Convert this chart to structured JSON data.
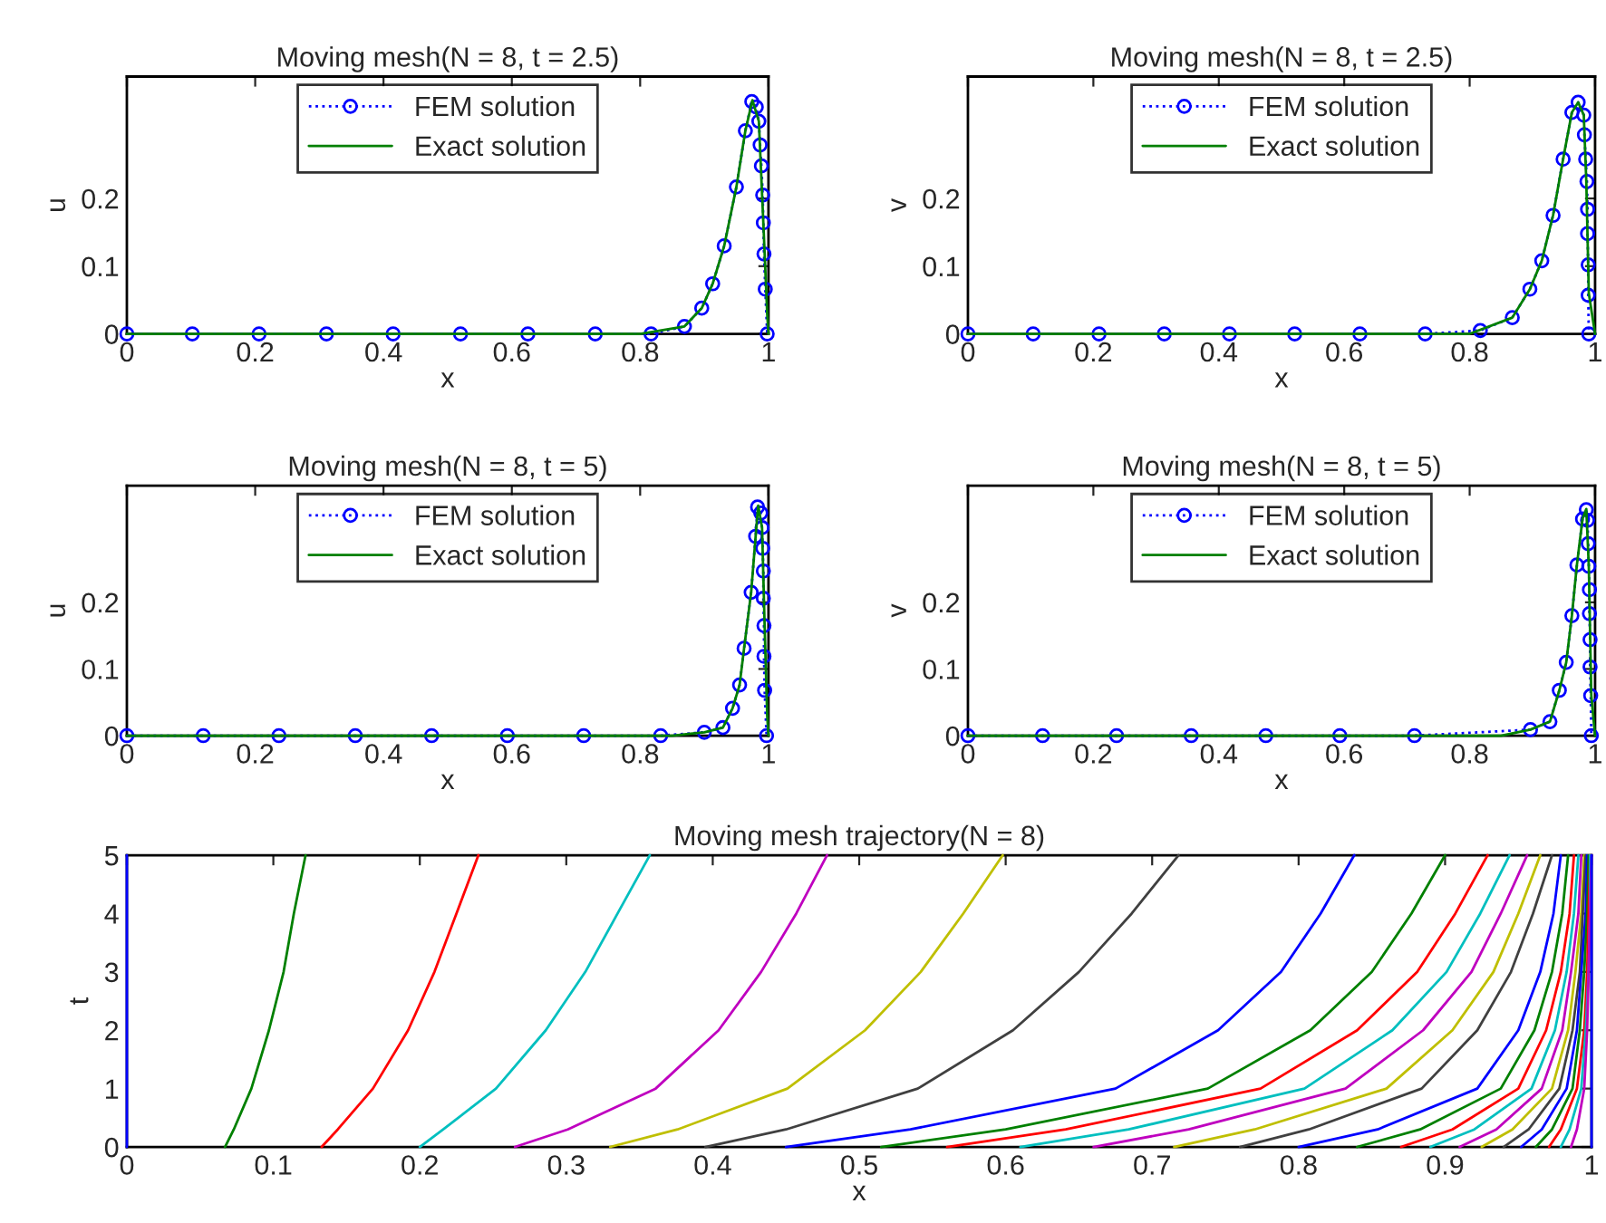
{
  "chart_data": [
    {
      "type": "line",
      "title": "Moving mesh(N = 8, t = 2.5)",
      "xlabel": "x",
      "ylabel": "u",
      "xlim": [
        0,
        1
      ],
      "ylim": [
        0,
        0.38
      ],
      "xticks": [
        0,
        0.2,
        0.4,
        0.6,
        0.8,
        1
      ],
      "yticks": [
        0,
        0.1,
        0.2
      ],
      "legend": "top",
      "grid": false,
      "series": [
        {
          "name": "FEM solution",
          "color": "#0000ff",
          "marker": "circle",
          "line_style": "dotted",
          "x": [
            0,
            0.102,
            0.206,
            0.311,
            0.415,
            0.52,
            0.625,
            0.73,
            0.817,
            0.869,
            0.896,
            0.913,
            0.931,
            0.95,
            0.964,
            0.974,
            0.981,
            0.985,
            0.987,
            0.989,
            0.991,
            0.992,
            0.993,
            0.995,
            0.998
          ],
          "values": [
            0,
            0,
            0,
            0,
            0,
            0,
            0,
            0,
            0,
            0.011,
            0.038,
            0.074,
            0.13,
            0.217,
            0.3,
            0.343,
            0.335,
            0.314,
            0.279,
            0.248,
            0.205,
            0.164,
            0.118,
            0.066,
            0
          ]
        },
        {
          "name": "Exact solution",
          "color": "#008000",
          "line_style": "solid",
          "x": [
            0,
            0.8,
            0.869,
            0.896,
            0.913,
            0.931,
            0.95,
            0.964,
            0.975,
            0.985,
            0.992,
            0.998,
            1
          ],
          "values": [
            0,
            0,
            0.011,
            0.038,
            0.074,
            0.13,
            0.217,
            0.3,
            0.345,
            0.314,
            0.164,
            0.03,
            0
          ]
        }
      ]
    },
    {
      "type": "line",
      "title": "Moving mesh(N = 8, t = 2.5)",
      "xlabel": "x",
      "ylabel": "v",
      "xlim": [
        0,
        1
      ],
      "ylim": [
        0,
        0.38
      ],
      "xticks": [
        0,
        0.2,
        0.4,
        0.6,
        0.8,
        1
      ],
      "yticks": [
        0,
        0.1,
        0.2
      ],
      "legend": "top",
      "grid": false,
      "series": [
        {
          "name": "FEM solution",
          "color": "#0000ff",
          "marker": "circle",
          "line_style": "dotted",
          "x": [
            0,
            0.104,
            0.209,
            0.313,
            0.417,
            0.521,
            0.625,
            0.729,
            0.817,
            0.868,
            0.896,
            0.915,
            0.933,
            0.949,
            0.963,
            0.973,
            0.982,
            0.983,
            0.985,
            0.987,
            0.988,
            0.988,
            0.989,
            0.989,
            0.99
          ],
          "values": [
            0,
            0,
            0,
            0,
            0,
            0,
            0,
            0,
            0.005,
            0.024,
            0.066,
            0.108,
            0.175,
            0.258,
            0.327,
            0.342,
            0.323,
            0.294,
            0.258,
            0.225,
            0.184,
            0.148,
            0.102,
            0.057,
            0
          ]
        },
        {
          "name": "Exact solution",
          "color": "#008000",
          "line_style": "solid",
          "x": [
            0,
            0.8,
            0.868,
            0.896,
            0.915,
            0.933,
            0.949,
            0.963,
            0.973,
            0.982,
            0.986,
            0.99,
            1
          ],
          "values": [
            0,
            0,
            0.024,
            0.066,
            0.108,
            0.175,
            0.258,
            0.327,
            0.342,
            0.323,
            0.225,
            0.06,
            0
          ]
        }
      ]
    },
    {
      "type": "line",
      "title": "Moving mesh(N = 8, t = 5)",
      "xlabel": "x",
      "ylabel": "u",
      "xlim": [
        0,
        1
      ],
      "ylim": [
        0,
        0.375
      ],
      "xticks": [
        0,
        0.2,
        0.4,
        0.6,
        0.8,
        1
      ],
      "yticks": [
        0,
        0.1,
        0.2
      ],
      "legend": "top",
      "grid": false,
      "series": [
        {
          "name": "FEM solution",
          "color": "#0000ff",
          "marker": "circle",
          "line_style": "dotted",
          "x": [
            0,
            0.119,
            0.237,
            0.356,
            0.475,
            0.593,
            0.712,
            0.832,
            0.9,
            0.929,
            0.944,
            0.955,
            0.962,
            0.973,
            0.98,
            0.983,
            0.988,
            0.99,
            0.991,
            0.992,
            0.992,
            0.993,
            0.993,
            0.994,
            0.997
          ],
          "values": [
            0,
            0,
            0,
            0,
            0,
            0,
            0,
            0,
            0.005,
            0.012,
            0.041,
            0.076,
            0.131,
            0.215,
            0.299,
            0.343,
            0.334,
            0.312,
            0.281,
            0.247,
            0.206,
            0.165,
            0.119,
            0.068,
            0
          ]
        },
        {
          "name": "Exact solution",
          "color": "#008000",
          "line_style": "solid",
          "x": [
            0,
            0.85,
            0.9,
            0.929,
            0.944,
            0.955,
            0.962,
            0.973,
            0.98,
            0.984,
            0.99,
            0.994,
            0.998,
            1
          ],
          "values": [
            0,
            0,
            0.005,
            0.012,
            0.041,
            0.076,
            0.131,
            0.215,
            0.299,
            0.345,
            0.312,
            0.165,
            0.03,
            0
          ]
        }
      ]
    },
    {
      "type": "line",
      "title": "Moving mesh(N = 8, t = 5)",
      "xlabel": "x",
      "ylabel": "v",
      "xlim": [
        0,
        1
      ],
      "ylim": [
        0,
        0.375
      ],
      "xticks": [
        0,
        0.2,
        0.4,
        0.6,
        0.8,
        1
      ],
      "yticks": [
        0,
        0.1,
        0.2
      ],
      "legend": "top",
      "grid": false,
      "series": [
        {
          "name": "FEM solution",
          "color": "#0000ff",
          "marker": "circle",
          "line_style": "dotted",
          "x": [
            0,
            0.119,
            0.237,
            0.356,
            0.475,
            0.593,
            0.712,
            0.897,
            0.928,
            0.943,
            0.954,
            0.963,
            0.971,
            0.98,
            0.986,
            0.988,
            0.989,
            0.99,
            0.991,
            0.991,
            0.992,
            0.992,
            0.993,
            0.994
          ],
          "values": [
            0,
            0,
            0,
            0,
            0,
            0,
            0,
            0.009,
            0.021,
            0.068,
            0.11,
            0.18,
            0.256,
            0.325,
            0.339,
            0.323,
            0.288,
            0.254,
            0.219,
            0.183,
            0.144,
            0.103,
            0.06,
            0
          ]
        },
        {
          "name": "Exact solution",
          "color": "#008000",
          "line_style": "solid",
          "x": [
            0,
            0.85,
            0.897,
            0.928,
            0.943,
            0.954,
            0.963,
            0.971,
            0.98,
            0.986,
            0.99,
            0.994,
            1
          ],
          "values": [
            0,
            0,
            0.009,
            0.021,
            0.068,
            0.11,
            0.18,
            0.256,
            0.325,
            0.34,
            0.254,
            0.06,
            0
          ]
        }
      ]
    },
    {
      "type": "line",
      "title": "Moving mesh trajectory(N = 8)",
      "xlabel": "x",
      "ylabel": "t",
      "xlim": [
        0,
        1
      ],
      "ylim": [
        0,
        5
      ],
      "xticks": [
        0,
        0.1,
        0.2,
        0.3,
        0.4,
        0.5,
        0.6,
        0.7,
        0.8,
        0.9,
        1
      ],
      "yticks": [
        0,
        1,
        2,
        3,
        4,
        5
      ],
      "grid": false,
      "series": [
        {
          "color": "#0000ff",
          "x": [
            0,
            0,
            0,
            0,
            0,
            0,
            0
          ],
          "values": [
            0,
            0.3,
            1,
            2,
            3,
            4,
            5
          ]
        },
        {
          "color": "#008000",
          "x": [
            0.067,
            0.073,
            0.085,
            0.097,
            0.107,
            0.114,
            0.122
          ],
          "values": [
            0,
            0.3,
            1,
            2,
            3,
            4,
            5
          ]
        },
        {
          "color": "#ff0000",
          "x": [
            0.133,
            0.144,
            0.168,
            0.192,
            0.21,
            0.225,
            0.24
          ],
          "values": [
            0,
            0.3,
            1,
            2,
            3,
            4,
            5
          ]
        },
        {
          "color": "#00bfbf",
          "x": [
            0.2,
            0.216,
            0.252,
            0.286,
            0.313,
            0.335,
            0.357
          ],
          "values": [
            0,
            0.3,
            1,
            2,
            3,
            4,
            5
          ]
        },
        {
          "color": "#bf00bf",
          "x": [
            0.265,
            0.301,
            0.361,
            0.404,
            0.433,
            0.457,
            0.478
          ],
          "values": [
            0,
            0.3,
            1,
            2,
            3,
            4,
            5
          ]
        },
        {
          "color": "#bfbf00",
          "x": [
            0.33,
            0.376,
            0.451,
            0.504,
            0.542,
            0.571,
            0.598
          ],
          "values": [
            0,
            0.3,
            1,
            2,
            3,
            4,
            5
          ]
        },
        {
          "color": "#404040",
          "x": [
            0.395,
            0.45,
            0.54,
            0.605,
            0.65,
            0.686,
            0.718
          ],
          "values": [
            0,
            0.3,
            1,
            2,
            3,
            4,
            5
          ]
        },
        {
          "color": "#0000ff",
          "x": [
            0.45,
            0.535,
            0.675,
            0.745,
            0.788,
            0.815,
            0.838
          ],
          "values": [
            0,
            0.3,
            1,
            2,
            3,
            4,
            5
          ]
        },
        {
          "color": "#008000",
          "x": [
            0.515,
            0.6,
            0.738,
            0.808,
            0.85,
            0.877,
            0.9
          ],
          "values": [
            0,
            0.3,
            1,
            2,
            3,
            4,
            5
          ]
        },
        {
          "color": "#ff0000",
          "x": [
            0.56,
            0.641,
            0.774,
            0.84,
            0.881,
            0.907,
            0.929
          ],
          "values": [
            0,
            0.3,
            1,
            2,
            3,
            4,
            5
          ]
        },
        {
          "color": "#00bfbf",
          "x": [
            0.61,
            0.684,
            0.804,
            0.864,
            0.901,
            0.924,
            0.944
          ],
          "values": [
            0,
            0.3,
            1,
            2,
            3,
            4,
            5
          ]
        },
        {
          "color": "#bf00bf",
          "x": [
            0.66,
            0.725,
            0.832,
            0.885,
            0.918,
            0.938,
            0.956
          ],
          "values": [
            0,
            0.3,
            1,
            2,
            3,
            4,
            5
          ]
        },
        {
          "color": "#bfbf00",
          "x": [
            0.715,
            0.77,
            0.86,
            0.905,
            0.933,
            0.95,
            0.965
          ],
          "values": [
            0,
            0.3,
            1,
            2,
            3,
            4,
            5
          ]
        },
        {
          "color": "#404040",
          "x": [
            0.76,
            0.807,
            0.884,
            0.922,
            0.945,
            0.96,
            0.973
          ],
          "values": [
            0,
            0.3,
            1,
            2,
            3,
            4,
            5
          ]
        },
        {
          "color": "#0000ff",
          "x": [
            0.8,
            0.854,
            0.922,
            0.95,
            0.965,
            0.974,
            0.979
          ],
          "values": [
            0,
            0.3,
            1,
            2,
            3,
            4,
            5
          ]
        },
        {
          "color": "#008000",
          "x": [
            0.84,
            0.883,
            0.938,
            0.961,
            0.973,
            0.98,
            0.984
          ],
          "values": [
            0,
            0.3,
            1,
            2,
            3,
            4,
            5
          ]
        },
        {
          "color": "#ff0000",
          "x": [
            0.87,
            0.905,
            0.95,
            0.969,
            0.979,
            0.985,
            0.988
          ],
          "values": [
            0,
            0.3,
            1,
            2,
            3,
            4,
            5
          ]
        },
        {
          "color": "#00bfbf",
          "x": [
            0.89,
            0.92,
            0.959,
            0.975,
            0.983,
            0.988,
            0.991
          ],
          "values": [
            0,
            0.3,
            1,
            2,
            3,
            4,
            5
          ]
        },
        {
          "color": "#bf00bf",
          "x": [
            0.91,
            0.935,
            0.966,
            0.98,
            0.986,
            0.991,
            0.993
          ],
          "values": [
            0,
            0.3,
            1,
            2,
            3,
            4,
            5
          ]
        },
        {
          "color": "#bfbf00",
          "x": [
            0.925,
            0.946,
            0.973,
            0.984,
            0.989,
            0.993,
            0.995
          ],
          "values": [
            0,
            0.3,
            1,
            2,
            3,
            4,
            5
          ]
        },
        {
          "color": "#404040",
          "x": [
            0.94,
            0.957,
            0.978,
            0.987,
            0.992,
            0.994,
            0.996
          ],
          "values": [
            0,
            0.3,
            1,
            2,
            3,
            4,
            5
          ]
        },
        {
          "color": "#0000ff",
          "x": [
            0.952,
            0.966,
            0.983,
            0.99,
            0.993,
            0.996,
            0.997
          ],
          "values": [
            0,
            0.3,
            1,
            2,
            3,
            4,
            5
          ]
        },
        {
          "color": "#008000",
          "x": [
            0.962,
            0.973,
            0.987,
            0.992,
            0.995,
            0.997,
            0.998
          ],
          "values": [
            0,
            0.3,
            1,
            2,
            3,
            4,
            5
          ]
        },
        {
          "color": "#ff0000",
          "x": [
            0.971,
            0.979,
            0.99,
            0.995,
            0.997,
            0.998,
            0.999
          ],
          "values": [
            0,
            0.3,
            1,
            2,
            3,
            4,
            5
          ]
        },
        {
          "color": "#00bfbf",
          "x": [
            0.979,
            0.985,
            0.993,
            0.996,
            0.998,
            0.999,
            0.999
          ],
          "values": [
            0,
            0.3,
            1,
            2,
            3,
            4,
            5
          ]
        },
        {
          "color": "#bf00bf",
          "x": [
            0.986,
            0.99,
            0.995,
            0.997,
            0.998,
            0.999,
            1
          ],
          "values": [
            0,
            0.3,
            1,
            2,
            3,
            4,
            5
          ]
        },
        {
          "color": "#0000ff",
          "x": [
            1,
            1,
            1,
            1,
            1,
            1,
            1
          ],
          "values": [
            0,
            0.3,
            1,
            2,
            3,
            4,
            5
          ]
        }
      ]
    }
  ]
}
